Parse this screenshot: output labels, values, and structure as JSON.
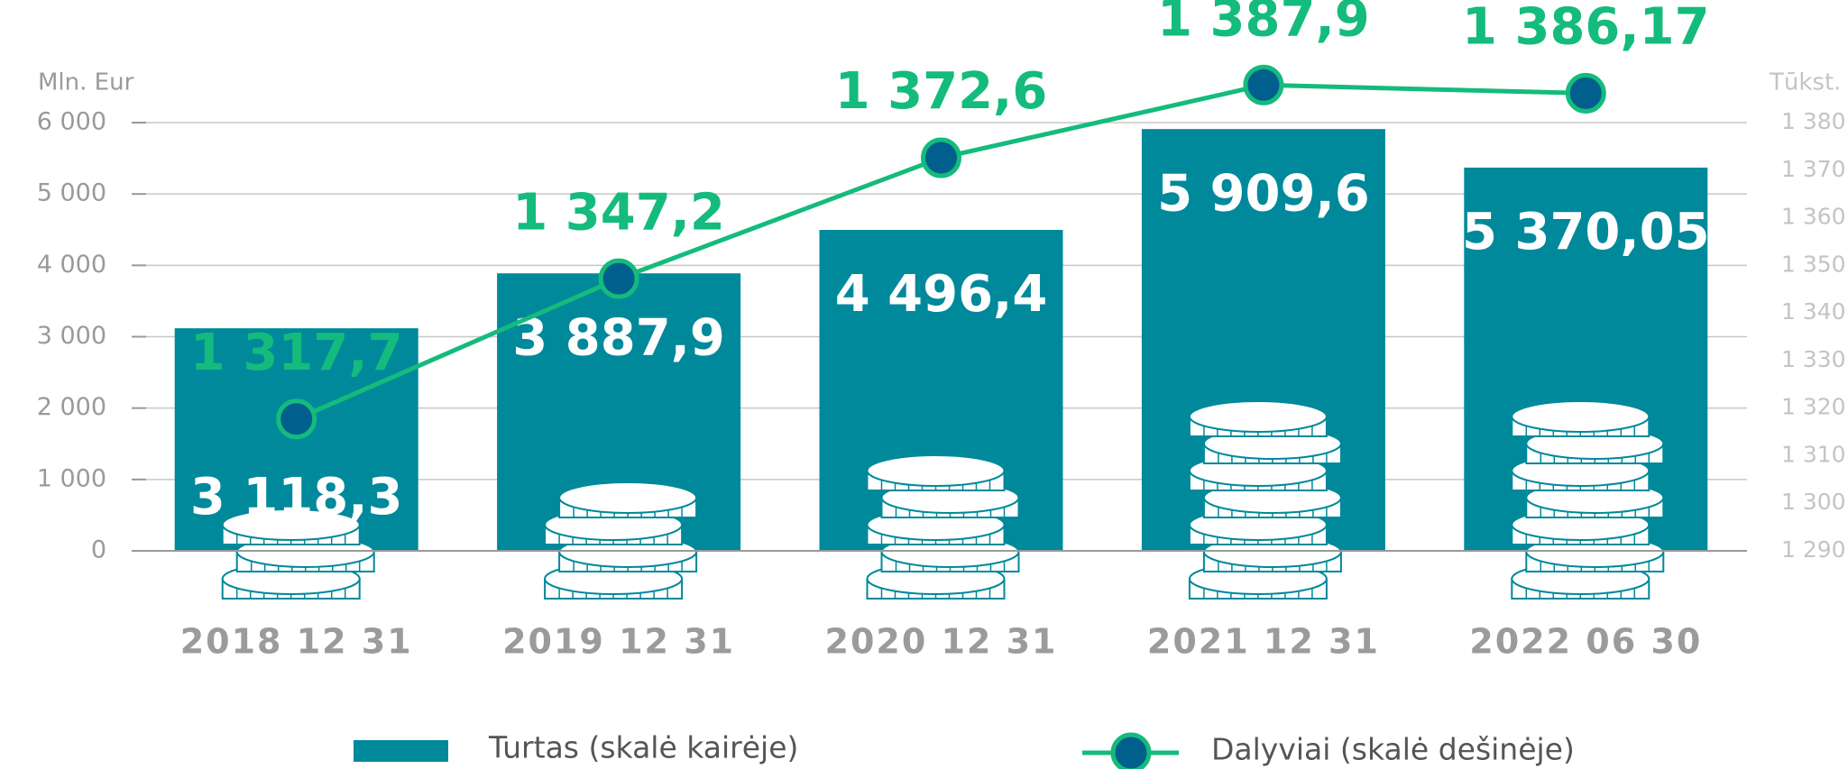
{
  "chart_data": {
    "type": "bar",
    "y_label": "Mln. Eur",
    "y2_label": "Tūkst.",
    "categories": [
      "2018 12 31",
      "2019 12 31",
      "2020 12 31",
      "2021 12 31",
      "2022 06 30"
    ],
    "series": [
      {
        "name": "Turtas (skalė kairėje)",
        "type": "bar",
        "axis": "y",
        "color": "#00899b",
        "values": [
          3118.3,
          3887.9,
          4496.4,
          5909.6,
          5370.05
        ],
        "value_labels": [
          "3 118,3",
          "3 887,9",
          "4 496,4",
          "5 909,6",
          "5 370,05"
        ]
      },
      {
        "name": "Dalyviai (skalė dešinėje)",
        "type": "line",
        "axis": "y2",
        "color": "#14bb7c",
        "marker_color": "#005f8c",
        "values": [
          1317.7,
          1347.2,
          1372.6,
          1387.9,
          1386.17
        ],
        "value_labels": [
          "1 317,7",
          "1 347,2",
          "1 372,6",
          "1 387,9",
          "1 386,17"
        ]
      }
    ],
    "ylim": [
      0,
      6000
    ],
    "yticks": [
      0,
      {
        "value": 1000,
        "label": "1 000"
      },
      {
        "value": 2000,
        "label": "2 000"
      },
      {
        "value": 3000,
        "label": "3 000"
      },
      {
        "value": 4000,
        "label": "4 000"
      },
      {
        "value": 5000,
        "label": "5 000"
      },
      {
        "value": 6000,
        "label": "6 000"
      }
    ],
    "y2lim": [
      1290,
      1380
    ],
    "y2ticks": [
      {
        "value": 1290,
        "label": "1 290"
      },
      {
        "value": 1300,
        "label": "1 300"
      },
      {
        "value": 1310,
        "label": "1 310"
      },
      {
        "value": 1320,
        "label": "1 320"
      },
      {
        "value": 1330,
        "label": "1 330"
      },
      {
        "value": 1340,
        "label": "1 340"
      },
      {
        "value": 1350,
        "label": "1 350"
      },
      {
        "value": 1360,
        "label": "1 360"
      },
      {
        "value": 1370,
        "label": "1 370"
      },
      {
        "value": 1380,
        "label": "1 380"
      }
    ],
    "grid": true,
    "legend": "bottom"
  }
}
